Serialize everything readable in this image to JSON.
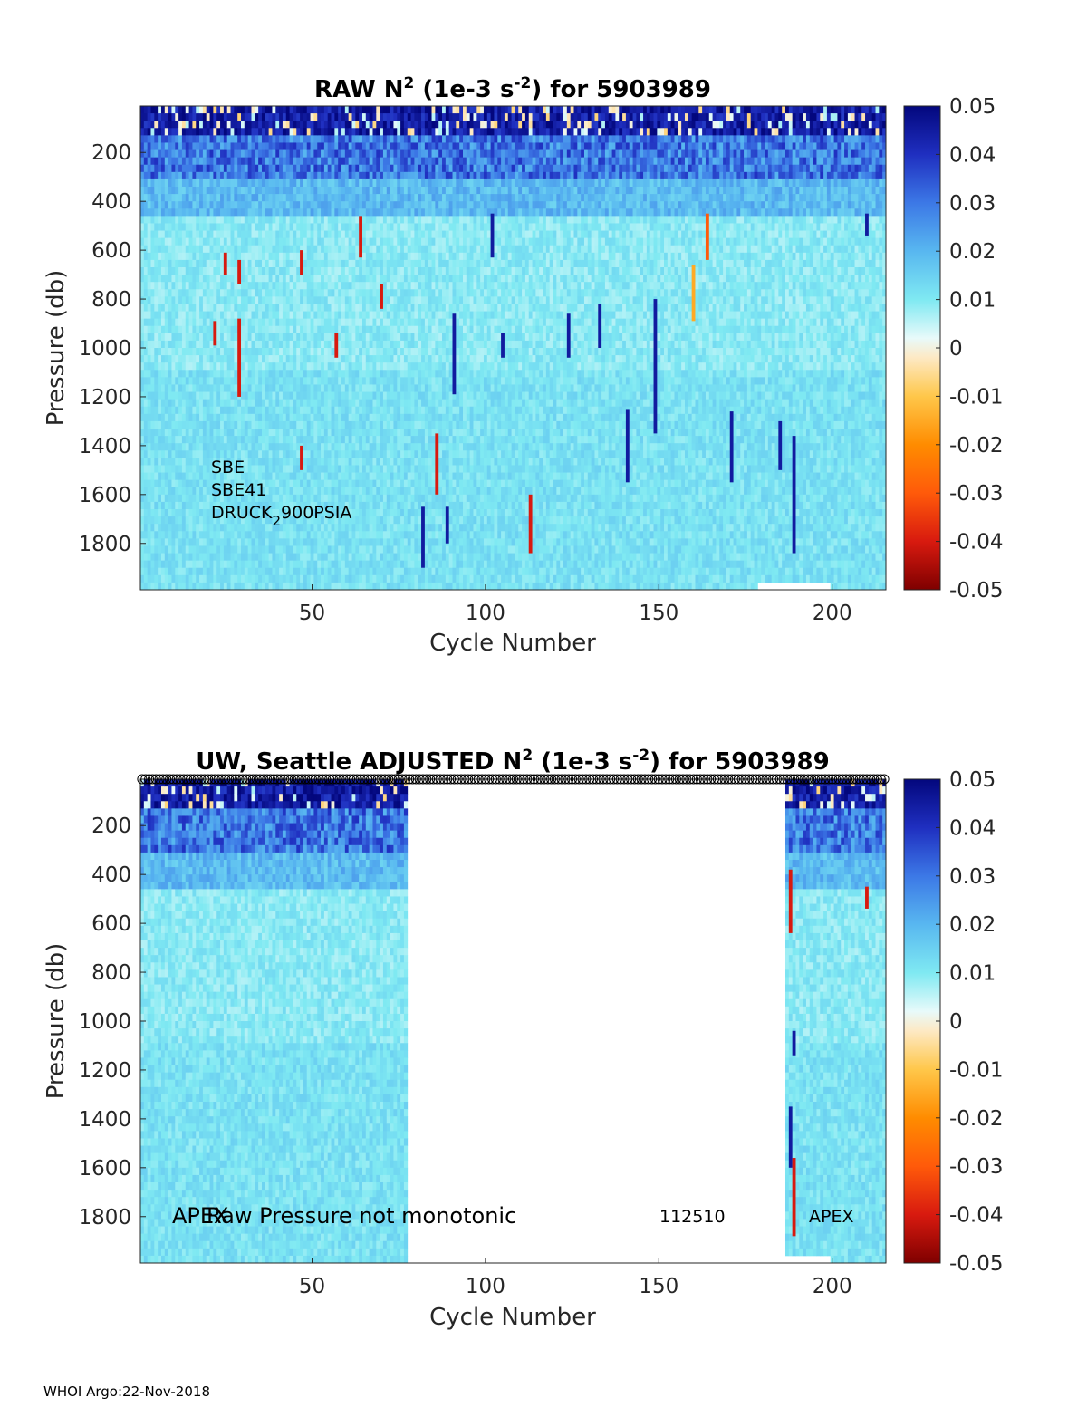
{
  "chart_data": [
    {
      "type": "heatmap",
      "title_prefix": "RAW N",
      "title_sup": "2",
      "title_mid": " (1e-3 s",
      "title_sup2": "-2",
      "title_suffix": ") for 5903989",
      "xlabel": "Cycle Number",
      "ylabel": "Pressure (db)",
      "xlim": [
        1,
        215
      ],
      "ylim": [
        1990,
        10
      ],
      "x_ticks": [
        "50",
        "100",
        "150",
        "200"
      ],
      "y_ticks": [
        "200",
        "400",
        "600",
        "800",
        "1000",
        "1200",
        "1400",
        "1600",
        "1800"
      ],
      "colorbar": {
        "range": [
          -0.05,
          0.05
        ],
        "ticks": [
          "0.05",
          "0.04",
          "0.03",
          "0.02",
          "0.01",
          "0",
          "-0.01",
          "-0.02",
          "-0.03",
          "-0.04",
          "-0.05"
        ]
      },
      "annotations": [
        "SBE",
        "SBE41",
        "DRUCK",
        "2",
        "900PSIA"
      ],
      "columns_present": "1-215",
      "spikes": [
        {
          "cycle": 22,
          "p_top": 890,
          "p_bot": 990,
          "value": -0.04
        },
        {
          "cycle": 25,
          "p_top": 610,
          "p_bot": 700,
          "value": -0.04
        },
        {
          "cycle": 29,
          "p_top": 640,
          "p_bot": 740,
          "value": -0.04
        },
        {
          "cycle": 29,
          "p_top": 880,
          "p_bot": 1200,
          "value": -0.04
        },
        {
          "cycle": 47,
          "p_top": 600,
          "p_bot": 700,
          "value": -0.04
        },
        {
          "cycle": 47,
          "p_top": 1400,
          "p_bot": 1500,
          "value": -0.04
        },
        {
          "cycle": 57,
          "p_top": 940,
          "p_bot": 1040,
          "value": -0.04
        },
        {
          "cycle": 64,
          "p_top": 460,
          "p_bot": 630,
          "value": -0.04
        },
        {
          "cycle": 70,
          "p_top": 740,
          "p_bot": 840,
          "value": -0.04
        },
        {
          "cycle": 82,
          "p_top": 1650,
          "p_bot": 1900,
          "value": 0.045
        },
        {
          "cycle": 86,
          "p_top": 1350,
          "p_bot": 1600,
          "value": -0.04
        },
        {
          "cycle": 89,
          "p_top": 1650,
          "p_bot": 1800,
          "value": 0.045
        },
        {
          "cycle": 91,
          "p_top": 860,
          "p_bot": 1190,
          "value": 0.045
        },
        {
          "cycle": 102,
          "p_top": 450,
          "p_bot": 630,
          "value": 0.045
        },
        {
          "cycle": 105,
          "p_top": 940,
          "p_bot": 1040,
          "value": 0.045
        },
        {
          "cycle": 113,
          "p_top": 1600,
          "p_bot": 1840,
          "value": -0.04
        },
        {
          "cycle": 124,
          "p_top": 860,
          "p_bot": 1040,
          "value": 0.045
        },
        {
          "cycle": 133,
          "p_top": 820,
          "p_bot": 1000,
          "value": 0.045
        },
        {
          "cycle": 141,
          "p_top": 1250,
          "p_bot": 1550,
          "value": 0.045
        },
        {
          "cycle": 149,
          "p_top": 800,
          "p_bot": 1350,
          "value": 0.045
        },
        {
          "cycle": 160,
          "p_top": 660,
          "p_bot": 890,
          "value": -0.015
        },
        {
          "cycle": 164,
          "p_top": 450,
          "p_bot": 640,
          "value": -0.03
        },
        {
          "cycle": 171,
          "p_top": 1260,
          "p_bot": 1550,
          "value": 0.045
        },
        {
          "cycle": 185,
          "p_top": 1300,
          "p_bot": 1500,
          "value": 0.045
        },
        {
          "cycle": 189,
          "p_top": 1360,
          "p_bot": 1840,
          "value": 0.045
        },
        {
          "cycle": 210,
          "p_top": 450,
          "p_bot": 540,
          "value": 0.045
        }
      ]
    },
    {
      "type": "heatmap",
      "title_prefix": "UW, Seattle  ADJUSTED N",
      "title_sup": "2",
      "title_mid": " (1e-3 s",
      "title_sup2": "-2",
      "title_suffix": ") for 5903989",
      "xlabel": "Cycle Number",
      "ylabel": "Pressure (db)",
      "xlim": [
        1,
        215
      ],
      "ylim": [
        1990,
        10
      ],
      "x_ticks": [
        "50",
        "100",
        "150",
        "200"
      ],
      "y_ticks": [
        "200",
        "400",
        "600",
        "800",
        "1000",
        "1200",
        "1400",
        "1600",
        "1800"
      ],
      "colorbar": {
        "range": [
          -0.05,
          0.05
        ],
        "ticks": [
          "0.05",
          "0.04",
          "0.03",
          "0.02",
          "0.01",
          "0",
          "-0.01",
          "-0.02",
          "-0.03",
          "-0.04",
          "-0.05"
        ]
      },
      "columns_present": [
        "1-77",
        "187-215"
      ],
      "annotations": [
        "APEX",
        "Raw Pressure not monotonic",
        "112510",
        "APEX"
      ],
      "marker_row": "circles at every cycle along top edge",
      "spikes": [
        {
          "cycle": 188,
          "p_top": 380,
          "p_bot": 640,
          "value": -0.04
        },
        {
          "cycle": 189,
          "p_top": 1040,
          "p_bot": 1140,
          "value": 0.045
        },
        {
          "cycle": 188,
          "p_top": 1350,
          "p_bot": 1600,
          "value": 0.045
        },
        {
          "cycle": 189,
          "p_top": 1560,
          "p_bot": 1880,
          "value": -0.04
        },
        {
          "cycle": 210,
          "p_top": 450,
          "p_bot": 540,
          "value": -0.04
        }
      ]
    }
  ],
  "footer": "WHOI Argo:22-Nov-2018"
}
